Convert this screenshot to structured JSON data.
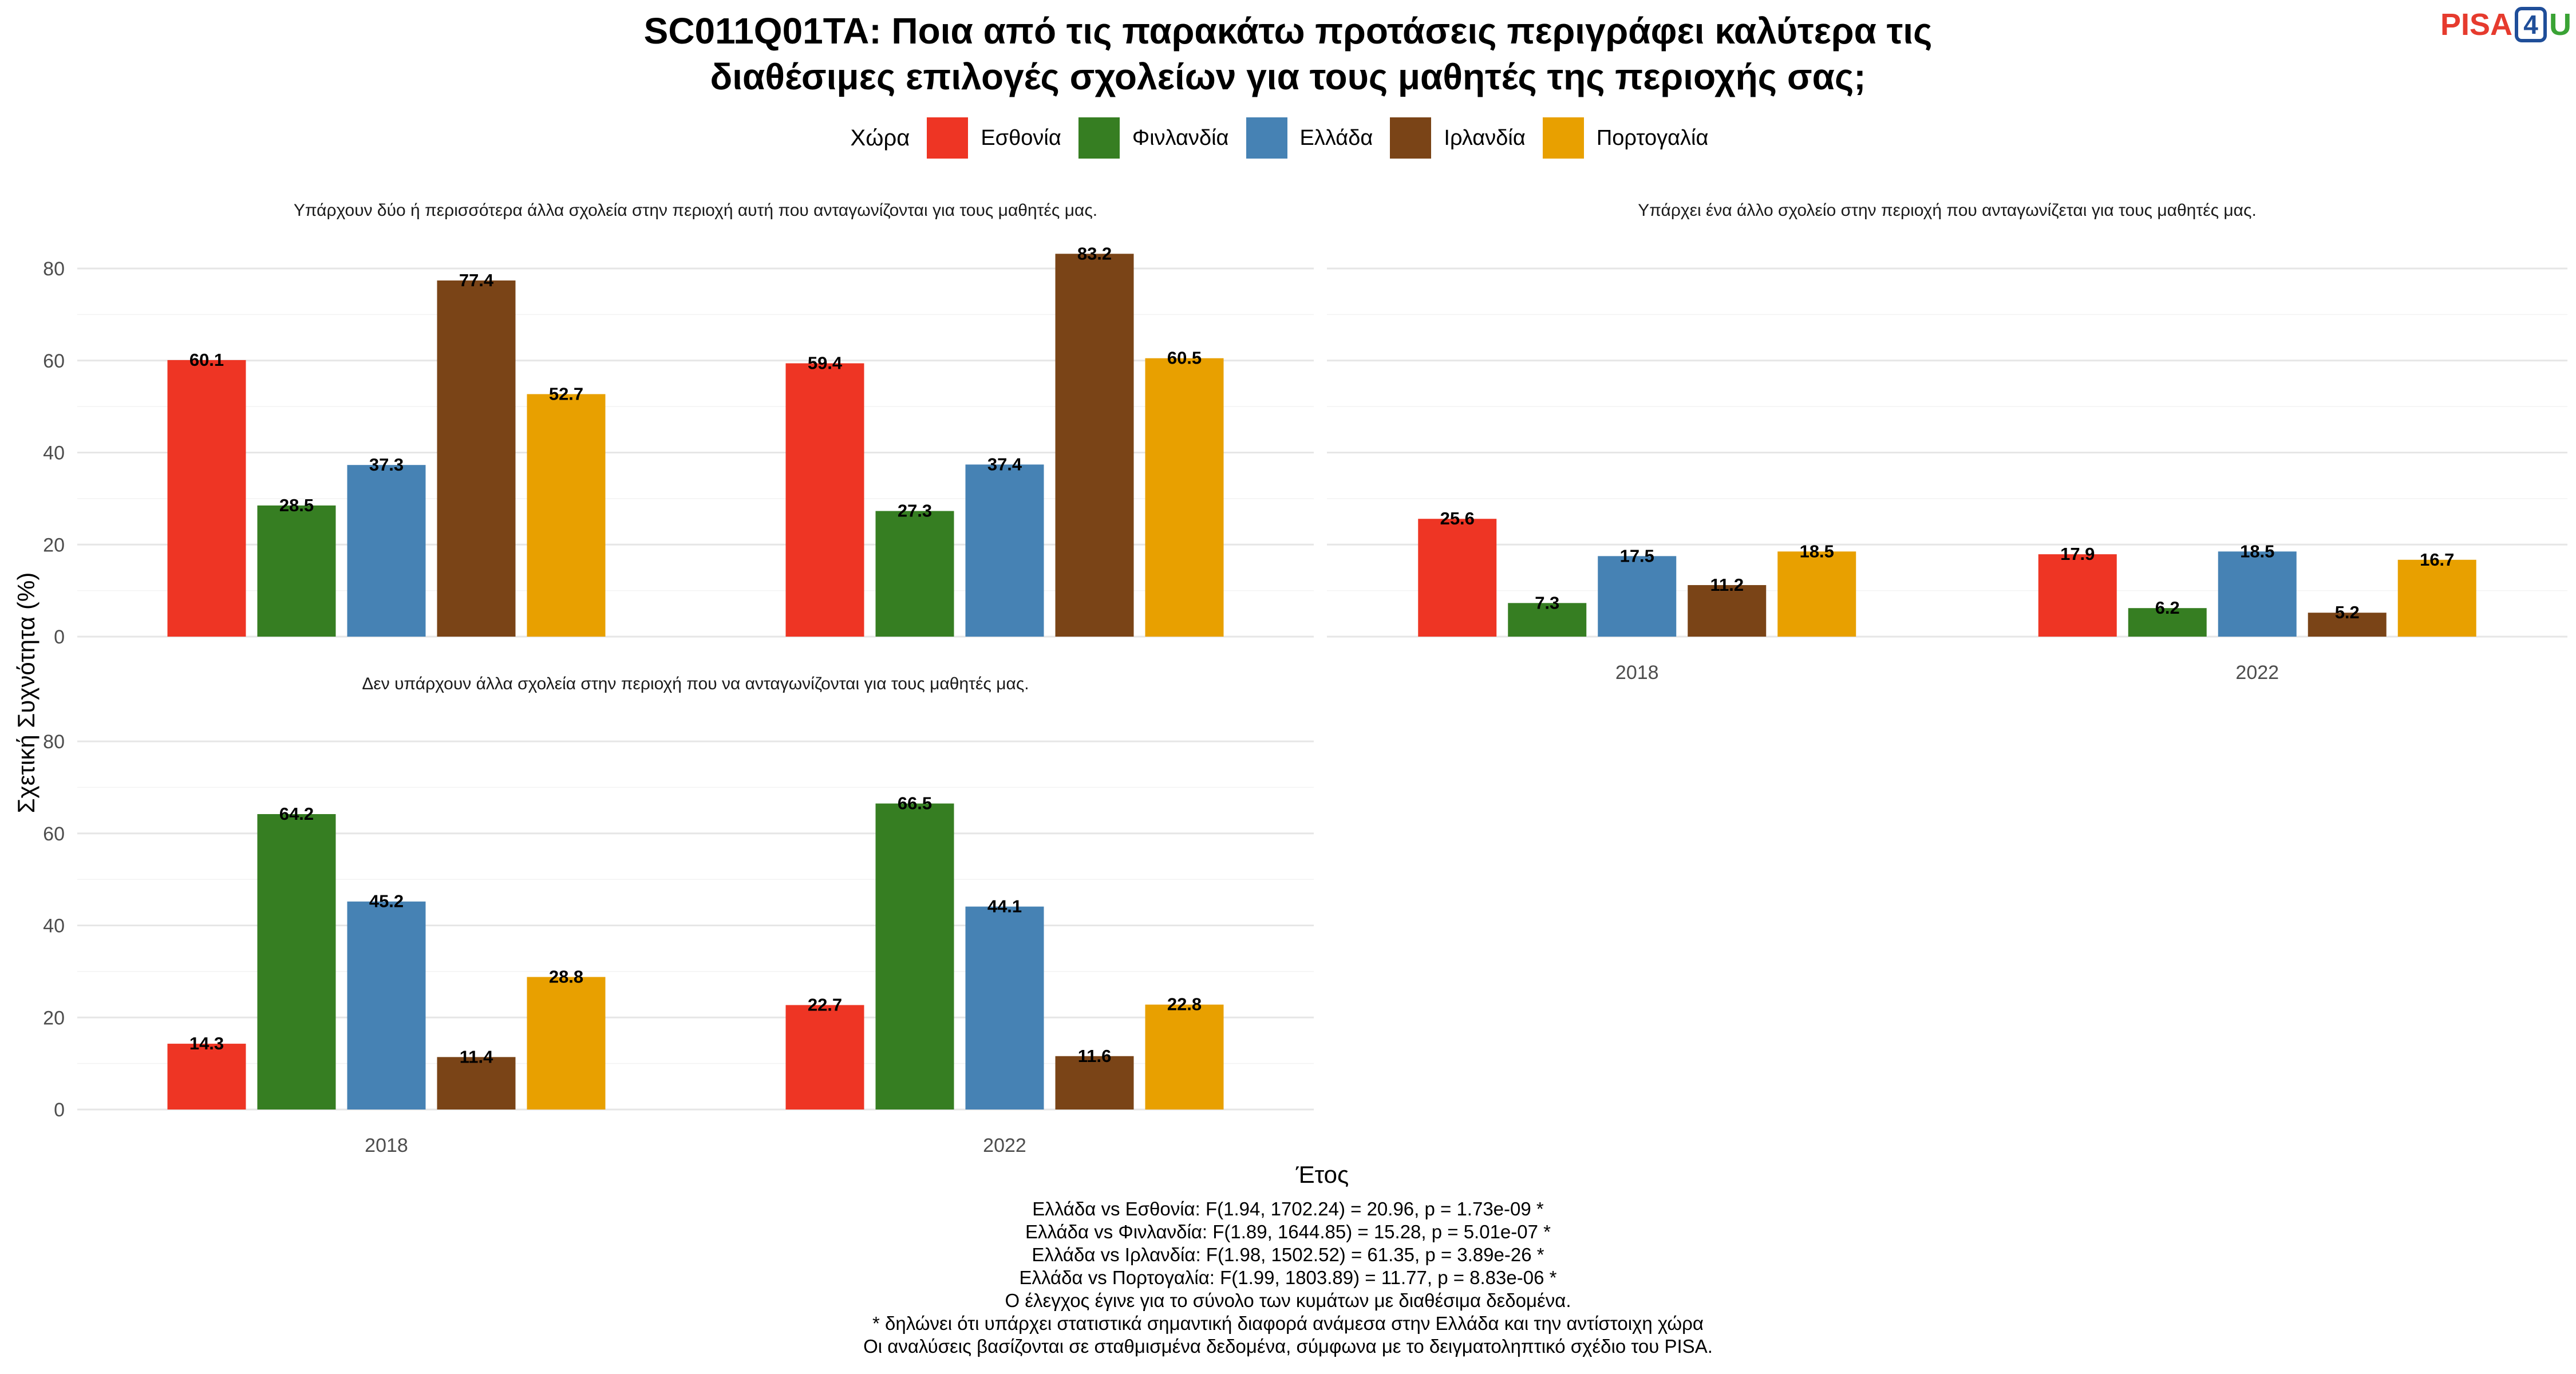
{
  "title_lines": [
    "SC011Q01TA: Ποια από τις παρακάτω προτάσεις περιγράφει καλύτερα τις",
    "διαθέσιμες επιλογές σχολείων για τους μαθητές της περιοχής σας;"
  ],
  "logo": {
    "part1": "PISA",
    "part2": "4",
    "part3": "U"
  },
  "footnotes": [
    "Ελλάδα vs Εσθονία: F(1.94, 1702.24) = 20.96, p = 1.73e-09 *",
    "Ελλάδα vs Φινλανδία: F(1.89, 1644.85) = 15.28, p = 5.01e-07 *",
    "Ελλάδα vs Ιρλανδία: F(1.98, 1502.52) = 61.35, p = 3.89e-26 *",
    "Ελλάδα vs Πορτογαλία: F(1.99, 1803.89) = 11.77, p = 8.83e-06 *",
    "Ο έλεγχος έγινε για το σύνολο των κυμάτων με διαθέσιμα δεδομένα.",
    "* δηλώνει ότι υπάρχει στατιστικά σημαντική διαφορά ανάμεσα στην Ελλάδα και την αντίστοιχη χώρα",
    "Οι αναλύσεις βασίζονται σε σταθμισμένα δεδομένα, σύμφωνα με το δειγματοληπτικό σχέδιο του PISA."
  ],
  "chart_data": {
    "type": "bar",
    "ylabel": "Σχετική Συχνότητα (%)",
    "xlabel": "Έτος",
    "legend_title": "Χώρα",
    "legend_position": "top",
    "grid": true,
    "ylim": [
      0,
      85
    ],
    "yticks": [
      0,
      20,
      40,
      60,
      80
    ],
    "categories": [
      "2018",
      "2022"
    ],
    "series_meta": [
      {
        "name": "Εσθονία",
        "color": "#EE3524"
      },
      {
        "name": "Φινλανδία",
        "color": "#367E22"
      },
      {
        "name": "Ελλάδα",
        "color": "#4682B4"
      },
      {
        "name": "Ιρλανδία",
        "color": "#7A4417"
      },
      {
        "name": "Πορτογαλία",
        "color": "#E8A000"
      }
    ],
    "facets": [
      {
        "title": "Υπάρχουν δύο ή περισσότερα άλλα σχολεία στην περιοχή αυτή που ανταγωνίζονται για τους μαθητές μας.",
        "values": [
          [
            60.1,
            59.4
          ],
          [
            28.5,
            27.3
          ],
          [
            37.3,
            37.4
          ],
          [
            77.4,
            83.2
          ],
          [
            52.7,
            60.5
          ]
        ],
        "show_x_ticks": false
      },
      {
        "title": "Υπάρχει ένα άλλο σχολείο στην περιοχή που ανταγωνίζεται για τους μαθητές μας.",
        "values": [
          [
            25.6,
            17.9
          ],
          [
            7.3,
            6.2
          ],
          [
            17.5,
            18.5
          ],
          [
            11.2,
            5.2
          ],
          [
            18.5,
            16.7
          ]
        ],
        "show_x_ticks": true
      },
      {
        "title": "Δεν υπάρχουν άλλα σχολεία στην περιοχή που να ανταγωνίζονται για τους μαθητές μας.",
        "values": [
          [
            14.3,
            22.7
          ],
          [
            64.2,
            66.5
          ],
          [
            45.2,
            44.1
          ],
          [
            11.4,
            11.6
          ],
          [
            28.8,
            22.8
          ]
        ],
        "show_x_ticks": true
      }
    ]
  }
}
